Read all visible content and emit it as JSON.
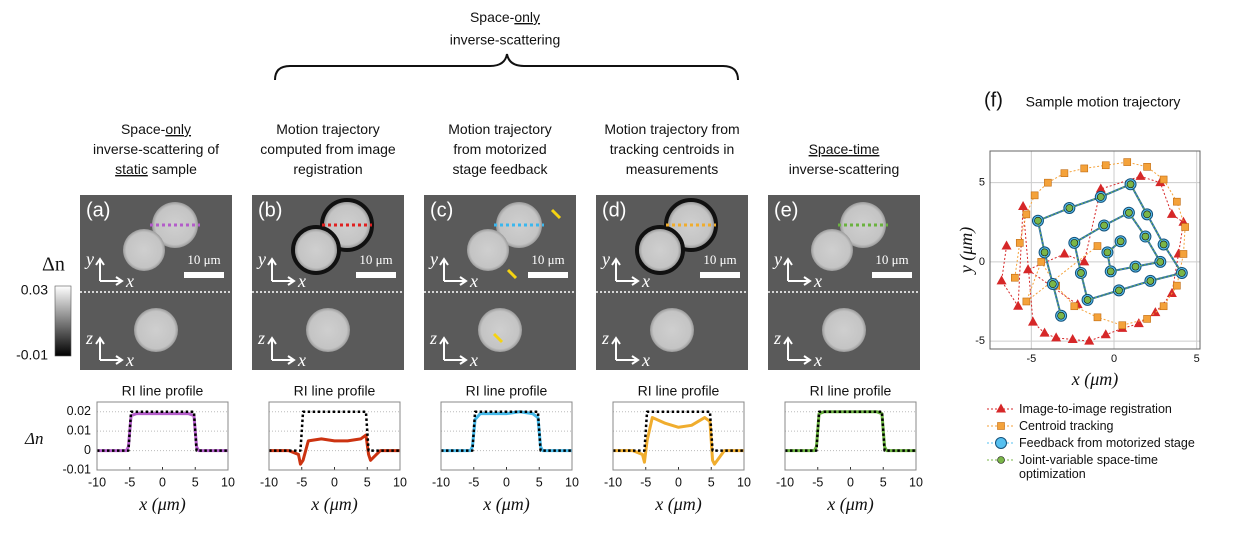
{
  "header": {
    "line1": [
      "Space-",
      {
        "text": "only",
        "underline": true
      }
    ],
    "line2": "inverse-scattering"
  },
  "colorbar": {
    "label": "Δn",
    "max": "0.03",
    "min": "-0.01"
  },
  "image_labels": {
    "y": "y",
    "x": "x",
    "z": "z",
    "scale_bar": "10 μm"
  },
  "panels": [
    {
      "label": "(a)",
      "caption": [
        [
          "Space-",
          {
            "text": "only",
            "underline": true
          }
        ],
        [
          "inverse-scattering of"
        ],
        [
          {
            "text": "static",
            "underline": true
          },
          " sample"
        ]
      ]
    },
    {
      "label": "(b)",
      "caption": [
        [
          "Motion trajectory"
        ],
        [
          "computed from image"
        ],
        [
          "registration"
        ]
      ]
    },
    {
      "label": "(c)",
      "caption": [
        [
          "Motion trajectory"
        ],
        [
          "from motorized"
        ],
        [
          "stage feedback"
        ]
      ]
    },
    {
      "label": "(d)",
      "caption": [
        [
          "Motion trajectory from"
        ],
        [
          "tracking centroids in"
        ],
        [
          "measurements"
        ]
      ]
    },
    {
      "label": "(e)",
      "caption": [
        [
          {
            "text": "Space-time",
            "underline": true
          }
        ],
        [
          "inverse-scattering"
        ]
      ]
    }
  ],
  "chart_data": [
    {
      "type": "line",
      "title": "RI line profile",
      "xlabel": "x (μm)",
      "ylabel": "Δn",
      "xlim": [
        -10,
        10
      ],
      "ylim": [
        -0.01,
        0.025
      ],
      "xticks": [
        -10,
        -5,
        0,
        5,
        10
      ],
      "yticks": [
        -0.01,
        0,
        0.01,
        0.02
      ],
      "ytick_labels": true,
      "grid": true,
      "x": [
        -10,
        -7,
        -5.5,
        -5.2,
        -4.8,
        -4,
        -2,
        0,
        2,
        4,
        4.8,
        5.2,
        5.5,
        7,
        10
      ],
      "series": [
        {
          "color": "#b35cc9",
          "style": "solid",
          "values": [
            0,
            0,
            0,
            0.002,
            0.018,
            0.019,
            0.019,
            0.019,
            0.019,
            0.019,
            0.018,
            0.002,
            0,
            0,
            0
          ]
        },
        {
          "color": "#000000",
          "style": "dotted",
          "values": [
            0,
            0,
            0,
            0,
            0.02,
            0.02,
            0.02,
            0.02,
            0.02,
            0.02,
            0.02,
            0,
            0,
            0,
            0
          ]
        }
      ]
    },
    {
      "type": "line",
      "title": "RI line profile",
      "xlabel": "x (μm)",
      "xlim": [
        -10,
        10
      ],
      "ylim": [
        -0.01,
        0.025
      ],
      "xticks": [
        -10,
        -5,
        0,
        5,
        10
      ],
      "yticks": [
        -0.01,
        0,
        0.01,
        0.02
      ],
      "ytick_labels": false,
      "grid": true,
      "x": [
        -10,
        -7,
        -5.5,
        -5.2,
        -4.8,
        -4,
        -2,
        0,
        2,
        4,
        4.8,
        5.2,
        5.5,
        7,
        10
      ],
      "series": [
        {
          "color": "#cc3311",
          "style": "solid",
          "values": [
            0,
            0,
            -0.002,
            -0.007,
            -0.005,
            0.005,
            0.006,
            0.005,
            0.005,
            0.006,
            0.008,
            -0.002,
            -0.005,
            0,
            0
          ]
        },
        {
          "color": "#000000",
          "style": "dotted",
          "values": [
            0,
            0,
            0,
            0,
            0.02,
            0.02,
            0.02,
            0.02,
            0.02,
            0.02,
            0.02,
            0,
            0,
            0,
            0
          ]
        }
      ]
    },
    {
      "type": "line",
      "title": "RI line profile",
      "xlabel": "x (μm)",
      "xlim": [
        -10,
        10
      ],
      "ylim": [
        -0.01,
        0.025
      ],
      "xticks": [
        -10,
        -5,
        0,
        5,
        10
      ],
      "yticks": [
        -0.01,
        0,
        0.01,
        0.02
      ],
      "ytick_labels": false,
      "grid": true,
      "x": [
        -10,
        -7,
        -5.5,
        -5.2,
        -4.8,
        -4,
        -2,
        0,
        2,
        4,
        4.8,
        5.2,
        5.5,
        7,
        10
      ],
      "series": [
        {
          "color": "#45b8e8",
          "style": "solid",
          "values": [
            0,
            0,
            0,
            0.002,
            0.016,
            0.019,
            0.019,
            0.019,
            0.02,
            0.019,
            0.017,
            0.002,
            0,
            0,
            0
          ]
        },
        {
          "color": "#000000",
          "style": "dotted",
          "values": [
            0,
            0,
            0,
            0,
            0.02,
            0.02,
            0.02,
            0.02,
            0.02,
            0.02,
            0.02,
            0,
            0,
            0,
            0
          ]
        }
      ]
    },
    {
      "type": "line",
      "title": "RI line profile",
      "xlabel": "x (μm)",
      "xlim": [
        -10,
        10
      ],
      "ylim": [
        -0.01,
        0.025
      ],
      "xticks": [
        -10,
        -5,
        0,
        5,
        10
      ],
      "yticks": [
        -0.01,
        0,
        0.01,
        0.02
      ],
      "ytick_labels": false,
      "grid": true,
      "x": [
        -10,
        -7,
        -5.5,
        -5.2,
        -4.8,
        -4,
        -2,
        0,
        2,
        4,
        4.8,
        5.2,
        5.5,
        7,
        10
      ],
      "series": [
        {
          "color": "#f0ad2e",
          "style": "solid",
          "values": [
            0,
            0,
            -0.002,
            -0.006,
            0.005,
            0.017,
            0.014,
            0.012,
            0.013,
            0.017,
            0.015,
            -0.005,
            -0.007,
            0,
            0
          ]
        },
        {
          "color": "#000000",
          "style": "dotted",
          "values": [
            0,
            0,
            0,
            0,
            0.02,
            0.02,
            0.02,
            0.02,
            0.02,
            0.02,
            0.02,
            0,
            0,
            0,
            0
          ]
        }
      ]
    },
    {
      "type": "line",
      "title": "RI line profile",
      "xlabel": "x (μm)",
      "xlim": [
        -10,
        10
      ],
      "ylim": [
        -0.01,
        0.025
      ],
      "xticks": [
        -10,
        -5,
        0,
        5,
        10
      ],
      "yticks": [
        -0.01,
        0,
        0.01,
        0.02
      ],
      "ytick_labels": false,
      "grid": true,
      "x": [
        -10,
        -7,
        -5.5,
        -5.2,
        -4.8,
        -4,
        -2,
        0,
        2,
        4,
        4.8,
        5.2,
        5.5,
        7,
        10
      ],
      "series": [
        {
          "color": "#6ab23f",
          "style": "solid",
          "values": [
            0,
            0,
            0,
            0.002,
            0.019,
            0.02,
            0.02,
            0.02,
            0.02,
            0.02,
            0.019,
            0.002,
            0,
            0,
            0
          ]
        },
        {
          "color": "#000000",
          "style": "dotted",
          "values": [
            0,
            0,
            0,
            0,
            0.02,
            0.02,
            0.02,
            0.02,
            0.02,
            0.02,
            0.02,
            0,
            0,
            0,
            0
          ]
        }
      ]
    },
    {
      "type": "scatter",
      "label": "(f)",
      "title": "Sample motion trajectory",
      "xlabel": "x (μm)",
      "ylabel": "y (μm)",
      "xlim": [
        -7.5,
        5.2
      ],
      "ylim": [
        -5.5,
        7
      ],
      "xticks": [
        -5,
        0,
        5
      ],
      "yticks": [
        -5,
        0,
        5
      ],
      "grid": true,
      "series": [
        {
          "name": "Image-to-image registration",
          "color": "#d62728",
          "marker": "triangle",
          "x": [
            -6.5,
            -6.8,
            -5.8,
            -5.5,
            -4.9,
            -4.2,
            -3.5,
            -2.5,
            -1.5,
            -0.5,
            0.5,
            1.5,
            2.5,
            3.5,
            3.9,
            4.2,
            3.5,
            2.8,
            1.6,
            -0.8,
            -1.8,
            -3.0,
            -5.2,
            -2.2
          ],
          "y": [
            1.0,
            -1.2,
            -2.8,
            3.5,
            -3.8,
            -4.5,
            -4.8,
            -4.9,
            -5.0,
            -4.6,
            -4.2,
            -3.9,
            -3.2,
            -2.0,
            0.5,
            2.5,
            3.0,
            5.0,
            5.4,
            4.6,
            0.0,
            0.5,
            -0.5,
            -2.7
          ]
        },
        {
          "name": "Centroid tracking",
          "color": "#f4a23a",
          "marker": "square",
          "x": [
            -6.0,
            -5.7,
            -5.3,
            -4.8,
            -4.0,
            -3.0,
            -1.8,
            -0.5,
            0.8,
            2.0,
            3.0,
            3.8,
            4.3,
            4.2,
            3.8,
            3.0,
            2.0,
            0.5,
            -1.0,
            -2.4,
            -3.5,
            -4.4,
            -5.3,
            -1.0
          ],
          "y": [
            -1.0,
            1.2,
            3.0,
            4.2,
            5.0,
            5.6,
            5.9,
            6.1,
            6.3,
            6.0,
            5.2,
            3.8,
            2.2,
            0.5,
            -1.5,
            -2.8,
            -3.6,
            -4.0,
            -3.5,
            -2.8,
            -1.5,
            0.0,
            -2.5,
            1.0
          ]
        },
        {
          "name": "Feedback from motorized stage",
          "color": "#56c0f0",
          "marker": "circle-large",
          "x": [
            -3.2,
            -3.7,
            -4.2,
            -4.6,
            -2.7,
            -0.8,
            1.0,
            2.0,
            3.0,
            4.1,
            2.2,
            0.3,
            -1.6,
            -2.0,
            -2.4,
            -0.6,
            0.9,
            1.9,
            2.8,
            1.3,
            -0.2,
            -0.4,
            0.4
          ],
          "y": [
            -3.4,
            -1.4,
            0.6,
            2.6,
            3.4,
            4.1,
            4.9,
            3.0,
            1.1,
            -0.7,
            -1.2,
            -1.8,
            -2.4,
            -0.7,
            1.2,
            2.3,
            3.1,
            1.6,
            0.0,
            -0.3,
            -0.6,
            0.6,
            1.3
          ]
        },
        {
          "name": "Joint-variable space-time optimization",
          "color": "#7ab648",
          "marker": "circle",
          "x": [
            -3.2,
            -3.7,
            -4.2,
            -4.6,
            -2.7,
            -0.8,
            1.0,
            2.0,
            3.0,
            4.1,
            2.2,
            0.3,
            -1.6,
            -2.0,
            -2.4,
            -0.6,
            0.9,
            1.9,
            2.8,
            1.3,
            -0.2,
            -0.4,
            0.4
          ],
          "y": [
            -3.4,
            -1.4,
            0.6,
            2.6,
            3.4,
            4.1,
            4.9,
            3.0,
            1.1,
            -0.7,
            -1.2,
            -1.8,
            -2.4,
            -0.7,
            1.2,
            2.3,
            3.1,
            1.6,
            0.0,
            -0.3,
            -0.6,
            0.6,
            1.3
          ]
        }
      ]
    }
  ]
}
